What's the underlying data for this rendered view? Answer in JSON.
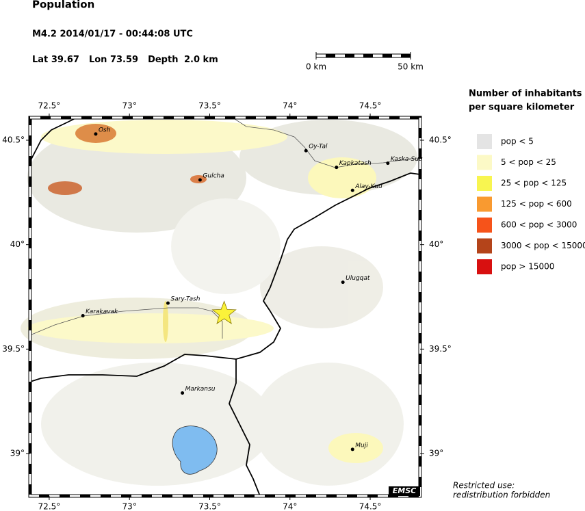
{
  "header": {
    "title": "Population",
    "event_line": "M4.2  2014/01/17 - 00:44:08 UTC",
    "lat_label": "Lat",
    "lon_label": "Lon",
    "depth_label": "Depth",
    "depth": {
      "value": 2.0,
      "label": "2.0 km"
    }
  },
  "event": {
    "lat": 39.67,
    "lon": 73.59
  },
  "scale": {
    "ticks": [
      {
        "value": 0,
        "label": "0 km"
      },
      {
        "value": 50,
        "label": "50 km"
      }
    ]
  },
  "map": {
    "lon_range": [
      72.381,
      74.811
    ],
    "lat_range": [
      38.797,
      40.608
    ],
    "lon_ticks": [
      {
        "value": 72.5,
        "label": "72.5°"
      },
      {
        "value": 73,
        "label": "73°"
      },
      {
        "value": 73.5,
        "label": "73.5°"
      },
      {
        "value": 74,
        "label": "74°"
      },
      {
        "value": 74.5,
        "label": "74.5°"
      }
    ],
    "lat_ticks": [
      {
        "value": 40.5,
        "label": "40.5°"
      },
      {
        "value": 40,
        "label": "40°"
      },
      {
        "value": 39.5,
        "label": "39.5°"
      },
      {
        "value": 39,
        "label": "39°"
      }
    ],
    "places": [
      {
        "name": "Osh",
        "lon": 72.79,
        "lat": 40.53
      },
      {
        "name": "Gulcha",
        "lon": 73.44,
        "lat": 40.31
      },
      {
        "name": "Oy-Tal",
        "lon": 74.1,
        "lat": 40.45
      },
      {
        "name": "Kaska-Suu",
        "lon": 74.61,
        "lat": 40.39
      },
      {
        "name": "Kapkatash",
        "lon": 74.29,
        "lat": 40.37
      },
      {
        "name": "Alay-Kuu",
        "lon": 74.39,
        "lat": 40.26
      },
      {
        "name": "Ulugqat",
        "lon": 74.33,
        "lat": 39.82
      },
      {
        "name": "Sary-Tash",
        "lon": 73.24,
        "lat": 39.72
      },
      {
        "name": "Karakavak",
        "lon": 72.71,
        "lat": 39.66
      },
      {
        "name": "Markansu",
        "lon": 73.33,
        "lat": 39.29
      },
      {
        "name": "Muji",
        "lon": 74.39,
        "lat": 39.02
      }
    ],
    "credit": "EMSC"
  },
  "legend": {
    "title": [
      "Number of inhabitants",
      "per square kilometer"
    ],
    "items": [
      {
        "label": "pop < 5",
        "color": "#e4e4e4"
      },
      {
        "label": "5 < pop < 25",
        "color": "#fcf9c6"
      },
      {
        "label": "25 < pop < 125",
        "color": "#f8f550"
      },
      {
        "label": "125 < pop < 600",
        "color": "#f99a30"
      },
      {
        "label": "600 < pop < 3000",
        "color": "#f6531a"
      },
      {
        "label": "3000 < pop < 15000",
        "color": "#b4441a"
      },
      {
        "label": "pop > 15000",
        "color": "#d81010"
      }
    ]
  },
  "notice": [
    "Restricted use:",
    "redistribution forbidden"
  ]
}
